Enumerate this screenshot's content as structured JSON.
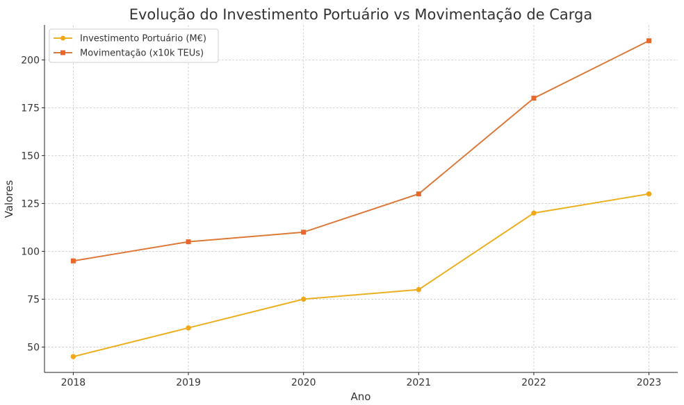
{
  "chart_data": {
    "type": "line",
    "title": "Evolução do Investimento Portuário vs Movimentação de Carga",
    "xlabel": "Ano",
    "ylabel": "Valores",
    "x": [
      2018,
      2019,
      2020,
      2021,
      2022,
      2023
    ],
    "xticks": [
      "2018",
      "2019",
      "2020",
      "2021",
      "2022",
      "2023"
    ],
    "yticks": [
      50,
      75,
      100,
      125,
      150,
      175,
      200
    ],
    "ytick_labels": [
      "50",
      "75",
      "100",
      "125",
      "150",
      "175",
      "200"
    ],
    "xlim": [
      2017.75,
      2023.25
    ],
    "ylim": [
      36.75,
      218.25
    ],
    "grid": true,
    "legend_position": "top-left",
    "series": [
      {
        "name": "Investimento Portuário (M€)",
        "values": [
          45,
          60,
          75,
          80,
          120,
          130
        ],
        "color": "#ebb020",
        "marker_color": "#f0a818",
        "marker": "circle"
      },
      {
        "name": "Movimentação (x10k TEUs)",
        "values": [
          95,
          105,
          110,
          130,
          180,
          210
        ],
        "color": "#dc7838",
        "marker_color": "#e8672a",
        "marker": "square"
      }
    ]
  }
}
